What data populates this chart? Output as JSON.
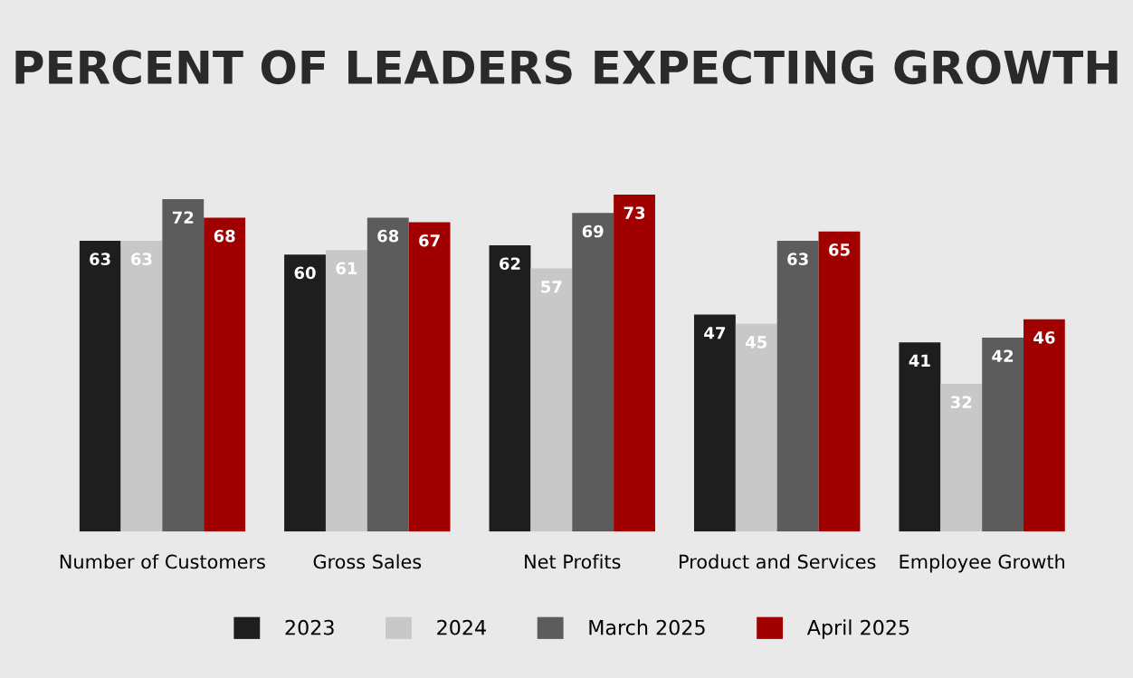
{
  "chart_data": {
    "type": "bar",
    "title": "PERCENT OF LEADERS EXPECTING GROWTH",
    "categories": [
      "Number of Customers",
      "Gross Sales",
      "Net Profits",
      "Product and Services",
      "Employee Growth"
    ],
    "series": [
      {
        "name": "2023",
        "color": "#1e1e1e",
        "values": [
          63,
          60,
          62,
          47,
          41
        ]
      },
      {
        "name": "2024",
        "color": "#c8c8c8",
        "values": [
          63,
          61,
          57,
          45,
          32
        ]
      },
      {
        "name": "March 2025",
        "color": "#5c5c5c",
        "values": [
          72,
          68,
          69,
          63,
          42
        ]
      },
      {
        "name": "April 2025",
        "color": "#a00000",
        "values": [
          68,
          67,
          73,
          65,
          46
        ]
      }
    ],
    "data_labels": true,
    "legend": "bottom",
    "grid": false,
    "tick_labels": "x"
  }
}
